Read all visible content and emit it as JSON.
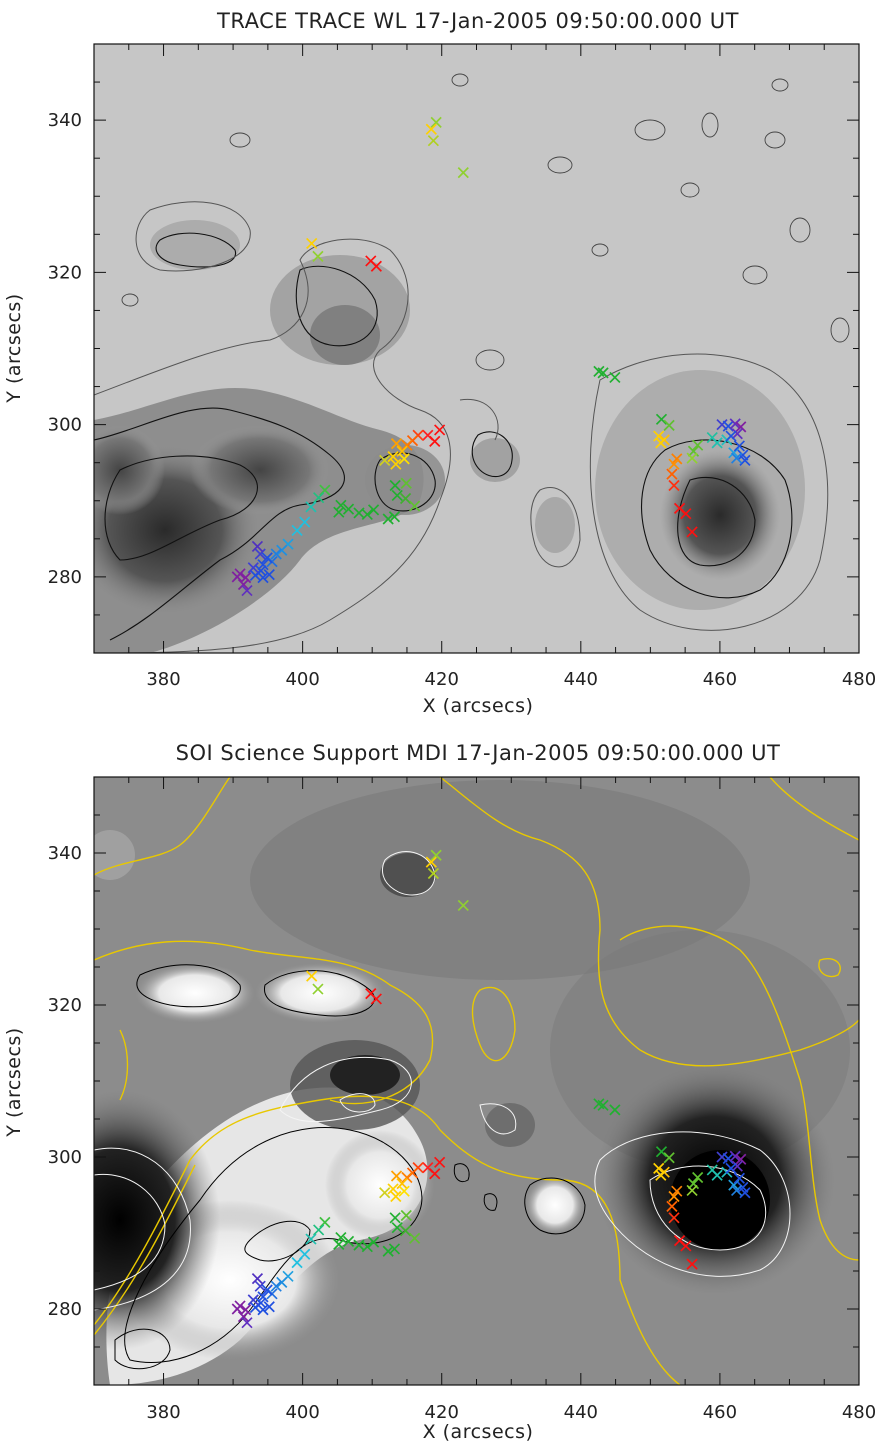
{
  "chart_data": [
    {
      "type": "scatter",
      "title": "TRACE TRACE WL 17-Jan-2005 09:50:00.000 UT",
      "xlabel": "X (arcsecs)",
      "ylabel": "Y (arcsecs)",
      "xlim": [
        370,
        480
      ],
      "ylim": [
        270,
        350
      ],
      "xticks": [
        380,
        400,
        420,
        440,
        460,
        480
      ],
      "yticks": [
        280,
        300,
        320,
        340
      ],
      "background": "grayscale white-light intensity map with dark sunspot regions and black/gray intensity contours",
      "colors": {
        "marker_scale": [
          "#ff1010",
          "#ff8000",
          "#ffd000",
          "#90d030",
          "#20b030",
          "#20c0e0",
          "#2050e0",
          "#6030c0",
          "#8020a0"
        ],
        "contour_dark": "#111111",
        "contour_light": "#555555"
      }
    },
    {
      "type": "scatter",
      "title": "SOI Science Support MDI 17-Jan-2005 09:50:00.000 UT",
      "xlabel": "X (arcsecs)",
      "ylabel": "Y (arcsecs)",
      "xlim": [
        370,
        480
      ],
      "ylim": [
        270,
        350
      ],
      "xticks": [
        380,
        400,
        420,
        440,
        460,
        480
      ],
      "yticks": [
        280,
        300,
        320,
        340
      ],
      "background": "grayscale magnetogram with black (negative) and white (positive) polarity regions, black/white contours and yellow neutral line",
      "colors": {
        "marker_scale": [
          "#ff1010",
          "#ff8000",
          "#ffd000",
          "#90d030",
          "#20b030",
          "#20c0e0",
          "#2050e0",
          "#6030c0",
          "#8020a0"
        ],
        "neutral_line": "#e8c800",
        "contour_pos": "#ffffff",
        "contour_neg": "#000000"
      }
    }
  ],
  "markers": [
    {
      "x": 419.2,
      "y": 339.7,
      "c": "#90d030"
    },
    {
      "x": 418.5,
      "y": 338.8,
      "c": "#ffd000"
    },
    {
      "x": 418.8,
      "y": 337.3,
      "c": "#b0d020"
    },
    {
      "x": 423.1,
      "y": 333.1,
      "c": "#90d030"
    },
    {
      "x": 401.3,
      "y": 323.8,
      "c": "#ffd000"
    },
    {
      "x": 402.2,
      "y": 322.1,
      "c": "#90d030"
    },
    {
      "x": 409.8,
      "y": 321.5,
      "c": "#ff1010"
    },
    {
      "x": 410.6,
      "y": 320.8,
      "c": "#ff1010"
    },
    {
      "x": 442.6,
      "y": 307.0,
      "c": "#20b030"
    },
    {
      "x": 443.2,
      "y": 306.8,
      "c": "#20b030"
    },
    {
      "x": 444.9,
      "y": 306.2,
      "c": "#20b030"
    },
    {
      "x": 419.7,
      "y": 299.3,
      "c": "#ff1010"
    },
    {
      "x": 418.0,
      "y": 298.6,
      "c": "#ff2020"
    },
    {
      "x": 419.0,
      "y": 297.8,
      "c": "#ff1010"
    },
    {
      "x": 416.6,
      "y": 298.6,
      "c": "#ff4010"
    },
    {
      "x": 415.8,
      "y": 297.9,
      "c": "#ff6000"
    },
    {
      "x": 415.0,
      "y": 297.3,
      "c": "#ff8000"
    },
    {
      "x": 413.5,
      "y": 297.5,
      "c": "#ffa000"
    },
    {
      "x": 414.3,
      "y": 296.5,
      "c": "#ffc000"
    },
    {
      "x": 413.0,
      "y": 295.8,
      "c": "#ffd000"
    },
    {
      "x": 414.6,
      "y": 295.5,
      "c": "#ffe000"
    },
    {
      "x": 411.8,
      "y": 295.3,
      "c": "#d0d020"
    },
    {
      "x": 413.4,
      "y": 294.8,
      "c": "#ffd000"
    },
    {
      "x": 413.3,
      "y": 292.0,
      "c": "#20b030"
    },
    {
      "x": 414.9,
      "y": 292.3,
      "c": "#60c030"
    },
    {
      "x": 413.6,
      "y": 290.7,
      "c": "#20b030"
    },
    {
      "x": 414.8,
      "y": 290.3,
      "c": "#40b030"
    },
    {
      "x": 416.1,
      "y": 289.3,
      "c": "#60c030"
    },
    {
      "x": 413.2,
      "y": 287.9,
      "c": "#20b030"
    },
    {
      "x": 412.3,
      "y": 287.6,
      "c": "#20b030"
    },
    {
      "x": 410.2,
      "y": 288.8,
      "c": "#20b030"
    },
    {
      "x": 409.3,
      "y": 288.2,
      "c": "#20b030"
    },
    {
      "x": 408.1,
      "y": 288.4,
      "c": "#20b030"
    },
    {
      "x": 406.6,
      "y": 288.9,
      "c": "#20b030"
    },
    {
      "x": 405.5,
      "y": 289.4,
      "c": "#20b030"
    },
    {
      "x": 405.2,
      "y": 288.5,
      "c": "#20b030"
    },
    {
      "x": 403.2,
      "y": 291.4,
      "c": "#40c040"
    },
    {
      "x": 402.3,
      "y": 290.4,
      "c": "#20c080"
    },
    {
      "x": 401.2,
      "y": 289.2,
      "c": "#20c0b0"
    },
    {
      "x": 400.3,
      "y": 287.2,
      "c": "#20c0e0"
    },
    {
      "x": 399.2,
      "y": 286.1,
      "c": "#20c0e0"
    },
    {
      "x": 397.9,
      "y": 284.3,
      "c": "#20a0e0"
    },
    {
      "x": 397.0,
      "y": 283.5,
      "c": "#2090e0"
    },
    {
      "x": 396.2,
      "y": 283.0,
      "c": "#2080e0"
    },
    {
      "x": 395.6,
      "y": 282.0,
      "c": "#2070e0"
    },
    {
      "x": 394.9,
      "y": 282.5,
      "c": "#2050e0"
    },
    {
      "x": 394.3,
      "y": 281.6,
      "c": "#2050e0"
    },
    {
      "x": 393.9,
      "y": 283.0,
      "c": "#4040d0"
    },
    {
      "x": 393.5,
      "y": 284.0,
      "c": "#5030c0"
    },
    {
      "x": 394.0,
      "y": 280.8,
      "c": "#2050e0"
    },
    {
      "x": 395.2,
      "y": 280.3,
      "c": "#2050e0"
    },
    {
      "x": 393.2,
      "y": 280.2,
      "c": "#2050e0"
    },
    {
      "x": 394.3,
      "y": 279.9,
      "c": "#2050e0"
    },
    {
      "x": 392.9,
      "y": 281.2,
      "c": "#4040d0"
    },
    {
      "x": 391.0,
      "y": 280.4,
      "c": "#8020a0"
    },
    {
      "x": 391.8,
      "y": 279.9,
      "c": "#8020a0"
    },
    {
      "x": 391.5,
      "y": 279.0,
      "c": "#8020a0"
    },
    {
      "x": 392.0,
      "y": 278.2,
      "c": "#6030c0"
    },
    {
      "x": 390.6,
      "y": 280.0,
      "c": "#8020a0"
    },
    {
      "x": 451.6,
      "y": 300.7,
      "c": "#20b030"
    },
    {
      "x": 452.7,
      "y": 299.9,
      "c": "#60c030"
    },
    {
      "x": 451.2,
      "y": 298.5,
      "c": "#ffd000"
    },
    {
      "x": 452.0,
      "y": 298.0,
      "c": "#ffc000"
    },
    {
      "x": 451.5,
      "y": 297.6,
      "c": "#ffd000"
    },
    {
      "x": 453.8,
      "y": 295.5,
      "c": "#ff8000"
    },
    {
      "x": 453.4,
      "y": 294.8,
      "c": "#ff9000"
    },
    {
      "x": 453.1,
      "y": 293.5,
      "c": "#ff6000"
    },
    {
      "x": 453.4,
      "y": 292.0,
      "c": "#ff3010"
    },
    {
      "x": 454.2,
      "y": 289.0,
      "c": "#ff1010"
    },
    {
      "x": 455.1,
      "y": 288.3,
      "c": "#ff1010"
    },
    {
      "x": 456.0,
      "y": 285.9,
      "c": "#ff1010"
    },
    {
      "x": 456.8,
      "y": 297.3,
      "c": "#60c030"
    },
    {
      "x": 456.2,
      "y": 296.5,
      "c": "#60c030"
    },
    {
      "x": 456.0,
      "y": 295.6,
      "c": "#90d030"
    },
    {
      "x": 458.9,
      "y": 298.3,
      "c": "#20c0a0"
    },
    {
      "x": 459.6,
      "y": 297.6,
      "c": "#20c0b0"
    },
    {
      "x": 461.0,
      "y": 298.0,
      "c": "#20c0c0"
    },
    {
      "x": 460.3,
      "y": 300.0,
      "c": "#4040d0"
    },
    {
      "x": 461.2,
      "y": 299.8,
      "c": "#2050e0"
    },
    {
      "x": 462.2,
      "y": 300.1,
      "c": "#6030c0"
    },
    {
      "x": 463.0,
      "y": 299.7,
      "c": "#8020a0"
    },
    {
      "x": 462.5,
      "y": 298.8,
      "c": "#6030c0"
    },
    {
      "x": 461.6,
      "y": 298.5,
      "c": "#2050e0"
    },
    {
      "x": 462.0,
      "y": 296.3,
      "c": "#20a0e0"
    },
    {
      "x": 462.8,
      "y": 297.2,
      "c": "#2050e0"
    },
    {
      "x": 463.3,
      "y": 296.0,
      "c": "#2050e0"
    },
    {
      "x": 463.6,
      "y": 295.3,
      "c": "#2050e0"
    },
    {
      "x": 462.4,
      "y": 295.6,
      "c": "#2080e0"
    }
  ]
}
